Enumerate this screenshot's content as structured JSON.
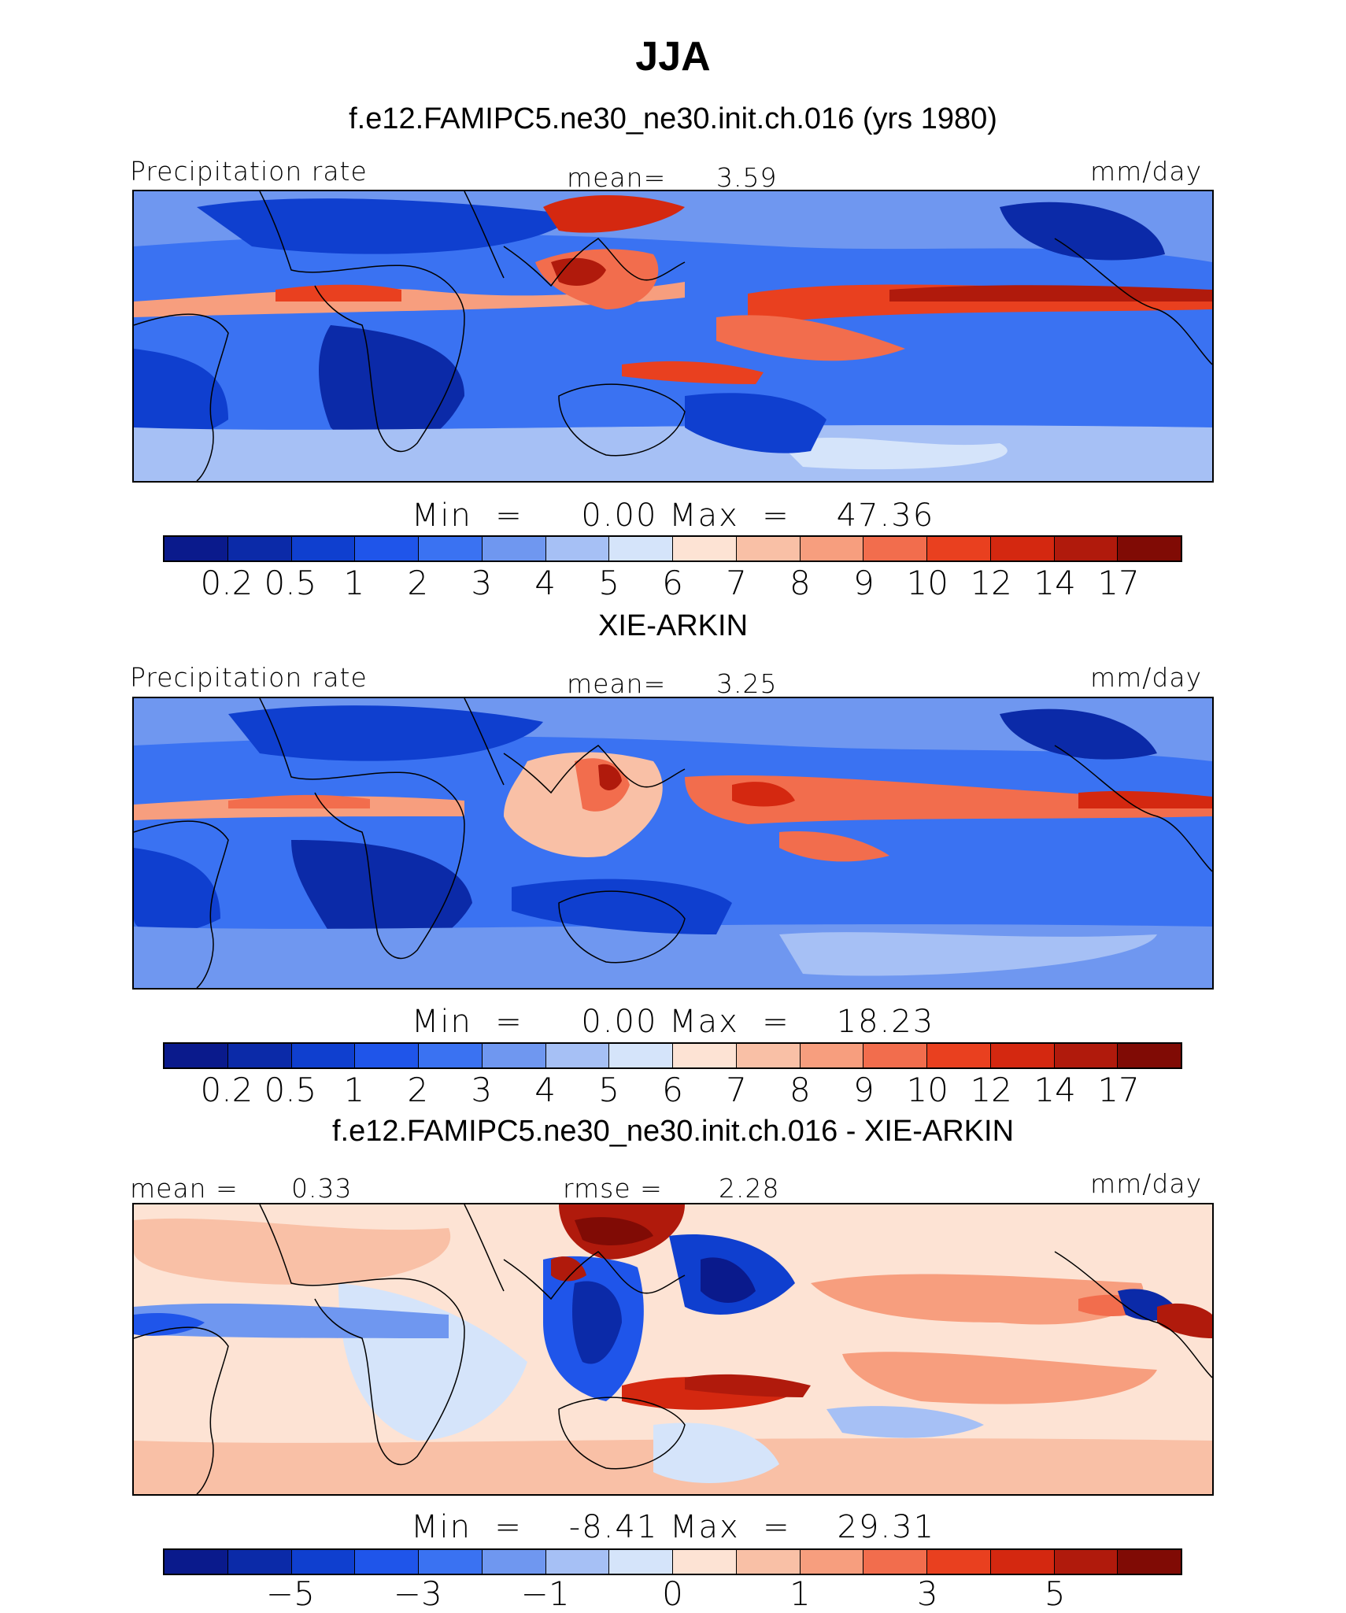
{
  "figure": {
    "title": "JJA"
  },
  "panels": [
    {
      "id": "model",
      "header": "f.e12.FAMIPC5.ne30_ne30.init.ch.016 (yrs 1980)",
      "left_label": "Precipitation rate",
      "center_label": "mean=",
      "center_value": "3.59",
      "right_label": "mm/day",
      "min_label": "Min",
      "min_value": "0.00",
      "max_label": "Max",
      "max_value": "47.36"
    },
    {
      "id": "obs",
      "header": "XIE-ARKIN",
      "left_label": "Precipitation rate",
      "center_label": "mean=",
      "center_value": "3.25",
      "right_label": "mm/day",
      "min_label": "Min",
      "min_value": "0.00",
      "max_label": "Max",
      "max_value": "18.23"
    },
    {
      "id": "diff",
      "header": "f.e12.FAMIPC5.ne30_ne30.init.ch.016 - XIE-ARKIN",
      "left_label": "mean =",
      "left_value": "0.33",
      "center_label": "rmse =",
      "center_value": "2.28",
      "right_label": "mm/day",
      "min_label": "Min",
      "min_value": "-8.41",
      "max_label": "Max",
      "max_value": "29.31"
    }
  ],
  "chart_data": [
    {
      "type": "heatmap",
      "title": "f.e12.FAMIPC5.ne30_ne30.init.ch.016 (yrs 1980)",
      "variable": "Precipitation rate",
      "units": "mm/day",
      "mean": 3.59,
      "min": 0.0,
      "max": 47.36,
      "colorbar_ticks": [
        "0.2",
        "0.5",
        "1",
        "2",
        "3",
        "4",
        "5",
        "6",
        "7",
        "8",
        "9",
        "10",
        "12",
        "14",
        "17"
      ]
    },
    {
      "type": "heatmap",
      "title": "XIE-ARKIN",
      "variable": "Precipitation rate",
      "units": "mm/day",
      "mean": 3.25,
      "min": 0.0,
      "max": 18.23,
      "colorbar_ticks": [
        "0.2",
        "0.5",
        "1",
        "2",
        "3",
        "4",
        "5",
        "6",
        "7",
        "8",
        "9",
        "10",
        "12",
        "14",
        "17"
      ]
    },
    {
      "type": "heatmap",
      "title": "f.e12.FAMIPC5.ne30_ne30.init.ch.016 - XIE-ARKIN",
      "units": "mm/day",
      "mean": 0.33,
      "rmse": 2.28,
      "min": -8.41,
      "max": 29.31,
      "colorbar_ticks": [
        "-5",
        "-3",
        "-1",
        "0",
        "1",
        "3",
        "5"
      ]
    }
  ],
  "colors": {
    "precip_scale": [
      "#0a1a8c",
      "#0b2aa8",
      "#0f3fcf",
      "#1f55ea",
      "#3a72f2",
      "#6f97f0",
      "#a6c0f5",
      "#d5e4fa",
      "#fde3d4",
      "#f9c0a6",
      "#f79e7e",
      "#f26d4d",
      "#e9401f",
      "#d42810",
      "#b01a0c",
      "#800b05"
    ],
    "diff_scale": [
      "#0a1a8c",
      "#0b2aa8",
      "#0f3fcf",
      "#1f55ea",
      "#3a72f2",
      "#6f97f0",
      "#a6c0f5",
      "#d5e4fa",
      "#fde3d4",
      "#f9c0a6",
      "#f79e7e",
      "#f26d4d",
      "#e9401f",
      "#d42810",
      "#b01a0c",
      "#800b05"
    ]
  }
}
